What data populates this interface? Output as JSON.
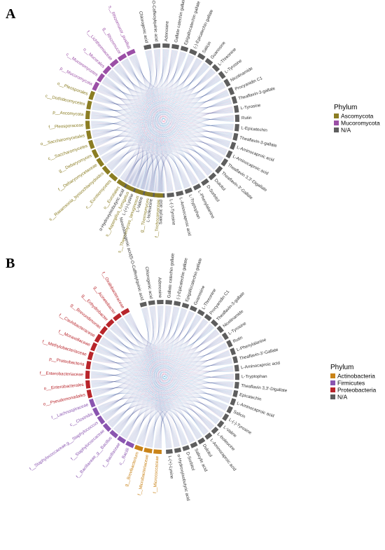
{
  "colors": {
    "Ascomycota": "#8b7d23",
    "Mucoromycota": "#9b4fa6",
    "N/A": "#5e5e5e",
    "Actinobacteria": "#c98318",
    "Firmicutes": "#8a55b0",
    "Proteobacteria": "#b8252b",
    "ribbon_blue": "#86c8e8",
    "ribbon_pink": "#f2a7c8"
  },
  "panels": [
    {
      "id": "A",
      "letter": "A",
      "legend": {
        "title": "Phylum",
        "items": [
          {
            "label": "Ascomycota",
            "color_key": "Ascomycota"
          },
          {
            "label": "Mucoromycota",
            "color_key": "Mucoromycota"
          },
          {
            "label": "N/A",
            "color_key": "N/A"
          }
        ]
      },
      "metabolites": [
        "Chlorogenic acid",
        "Neochlorogenic acid(5-O-Caffeoylquinic acid",
        "Adenosine",
        "Gallate catechin gallate",
        "Epigallocatechin gallate",
        "(-)-Epicatechin gallate",
        "Salicin",
        "Guanosine",
        "L-Threonine",
        "L-Tyrosine",
        "Nicotinamide",
        "Procyanidin C1",
        "Theaflavin-3-gallate",
        "L-Tyrosine",
        "Rutin",
        "L-Epicatechin",
        "Theaflavin-3-gallate",
        "L-Aminocaproic acid",
        "L-Aminocaproic acid",
        "Theaflavin 3,3'-Digallate",
        "Theaflavin-3'-Gallate",
        "Dulcitol",
        "D-Sorbitol",
        "L-Phenylalanine",
        "L-Tryptophan",
        "L-Aminocaproic acid",
        "L-(-)-Tyrosine",
        "Salicylic acid",
        "L-Isoleucine",
        "L-Valine",
        "L-(+)-Lysine",
        "α-Hydroxyisobutyric acid"
      ],
      "taxa": [
        {
          "label": "f__Trichocomaceae",
          "phylum": "Ascomycota"
        },
        {
          "label": "g__Thermomyces",
          "phylum": "Ascomycota"
        },
        {
          "label": "s__Thermomyces_lanuginosus",
          "phylum": "Ascomycota"
        },
        {
          "label": "s__Aspergillus_fumigatus",
          "phylum": "Ascomycota"
        },
        {
          "label": "o__Eurotiales",
          "phylum": "Ascomycota"
        },
        {
          "label": "c__Eurotiomycetes",
          "phylum": "Ascomycota"
        },
        {
          "label": "s__Rasamsonia_byssochlamydoides",
          "phylum": "Ascomycota"
        },
        {
          "label": "f__Debaryomycetaceae",
          "phylum": "Ascomycota"
        },
        {
          "label": "g__Debaryomyces",
          "phylum": "Ascomycota"
        },
        {
          "label": "c__Saccharomycetes",
          "phylum": "Ascomycota"
        },
        {
          "label": "o__Saccharomycetales",
          "phylum": "Ascomycota"
        },
        {
          "label": "f__Pleosporaceae",
          "phylum": "Ascomycota"
        },
        {
          "label": "p__Ascomycota",
          "phylum": "Ascomycota"
        },
        {
          "label": "c__Dothideomycetes",
          "phylum": "Ascomycota"
        },
        {
          "label": "o__Pleosporales",
          "phylum": "Ascomycota"
        },
        {
          "label": "p__Mucoromycota",
          "phylum": "Mucoromycota"
        },
        {
          "label": "c__Mucoromycetes",
          "phylum": "Mucoromycota"
        },
        {
          "label": "o__Mucorales",
          "phylum": "Mucoromycota"
        },
        {
          "label": "f__Lichtheimiaceae",
          "phylum": "Mucoromycota"
        },
        {
          "label": "g__Rhizomucor",
          "phylum": "Mucoromycota"
        },
        {
          "label": "s__Rhizomucor_pusillus",
          "phylum": "Mucoromycota"
        }
      ]
    },
    {
      "id": "B",
      "letter": "B",
      "legend": {
        "title": "Phylum",
        "items": [
          {
            "label": "Actinobacteria",
            "color_key": "Actinobacteria"
          },
          {
            "label": "Firmicutes",
            "color_key": "Firmicutes"
          },
          {
            "label": "Proteobacteria",
            "color_key": "Proteobacteria"
          },
          {
            "label": "N/A",
            "color_key": "N/A"
          }
        ]
      },
      "metabolites": [
        "Neochlorogenic acid(5-O-Caffeoylquinic acid",
        "Chlorogenic acid",
        "Adenosine",
        "Gallate catechin gallate",
        "(-)-Epicatechin gallate",
        "Epigallocatechin gallate",
        "Guanosine",
        "L-Threonine",
        "Procyanidin C1",
        "Theaflavin-3-gallate",
        "Nicotinamide",
        "L-Tyrosine",
        "Rutin",
        "L-Phenylalanine",
        "Theaflavin-3'-Gallate",
        "L-Aminocaproic acid",
        "L-Tryptophan",
        "Theaflavin 3,3'-Digallate",
        "Epicatechin",
        "L-Aminocaproic acid",
        "Salicin",
        "L-(-)-Tyrosine",
        "L-Valine",
        "L-Isoleucine",
        "L-Aminocaproic acid",
        "Dulcitol",
        "Salicylic acid",
        "D-Sorbitol",
        "α-Hydroxyisobutyric acid",
        "L-(+)-Lysine"
      ],
      "taxa": [
        {
          "label": "f__Micrococcaceae",
          "phylum": "Actinobacteria"
        },
        {
          "label": "f__Microbacteriaceae",
          "phylum": "Actinobacteria"
        },
        {
          "label": "g__Brevibacterium",
          "phylum": "Actinobacteria"
        },
        {
          "label": "c__Bacilli",
          "phylum": "Firmicutes"
        },
        {
          "label": "f__Bacillaceae",
          "phylum": "Firmicutes"
        },
        {
          "label": "f__Bacillaceae_g__Bacillus",
          "phylum": "Firmicutes"
        },
        {
          "label": "f__Staphylococcaceae",
          "phylum": "Firmicutes"
        },
        {
          "label": "f__Staphylococcaceae,g__Staphylococcus",
          "phylum": "Firmicutes"
        },
        {
          "label": "c__Clostridia",
          "phylum": "Firmicutes"
        },
        {
          "label": "f__Lachnospiraceae",
          "phylum": "Firmicutes"
        },
        {
          "label": "o__Pseudomonadales",
          "phylum": "Proteobacteria"
        },
        {
          "label": "o__Enterobacterales",
          "phylum": "Proteobacteria"
        },
        {
          "label": "f__Enterobacteriaceae",
          "phylum": "Proteobacteria"
        },
        {
          "label": "p__Proteobacteria",
          "phylum": "Proteobacteria"
        },
        {
          "label": "f__Methylobacteriaceae",
          "phylum": "Proteobacteria"
        },
        {
          "label": "f__Moraxellaceae",
          "phylum": "Proteobacteria"
        },
        {
          "label": "f__Caulobacteraceae",
          "phylum": "Proteobacteria"
        },
        {
          "label": "g__Brevundimonas",
          "phylum": "Proteobacteria"
        },
        {
          "label": "g__Enhydrobacter",
          "phylum": "Proteobacteria"
        },
        {
          "label": "g__Acinetobacter",
          "phylum": "Proteobacteria"
        },
        {
          "label": "f__Oxalobacteraceae",
          "phylum": "Proteobacteria"
        }
      ]
    }
  ]
}
